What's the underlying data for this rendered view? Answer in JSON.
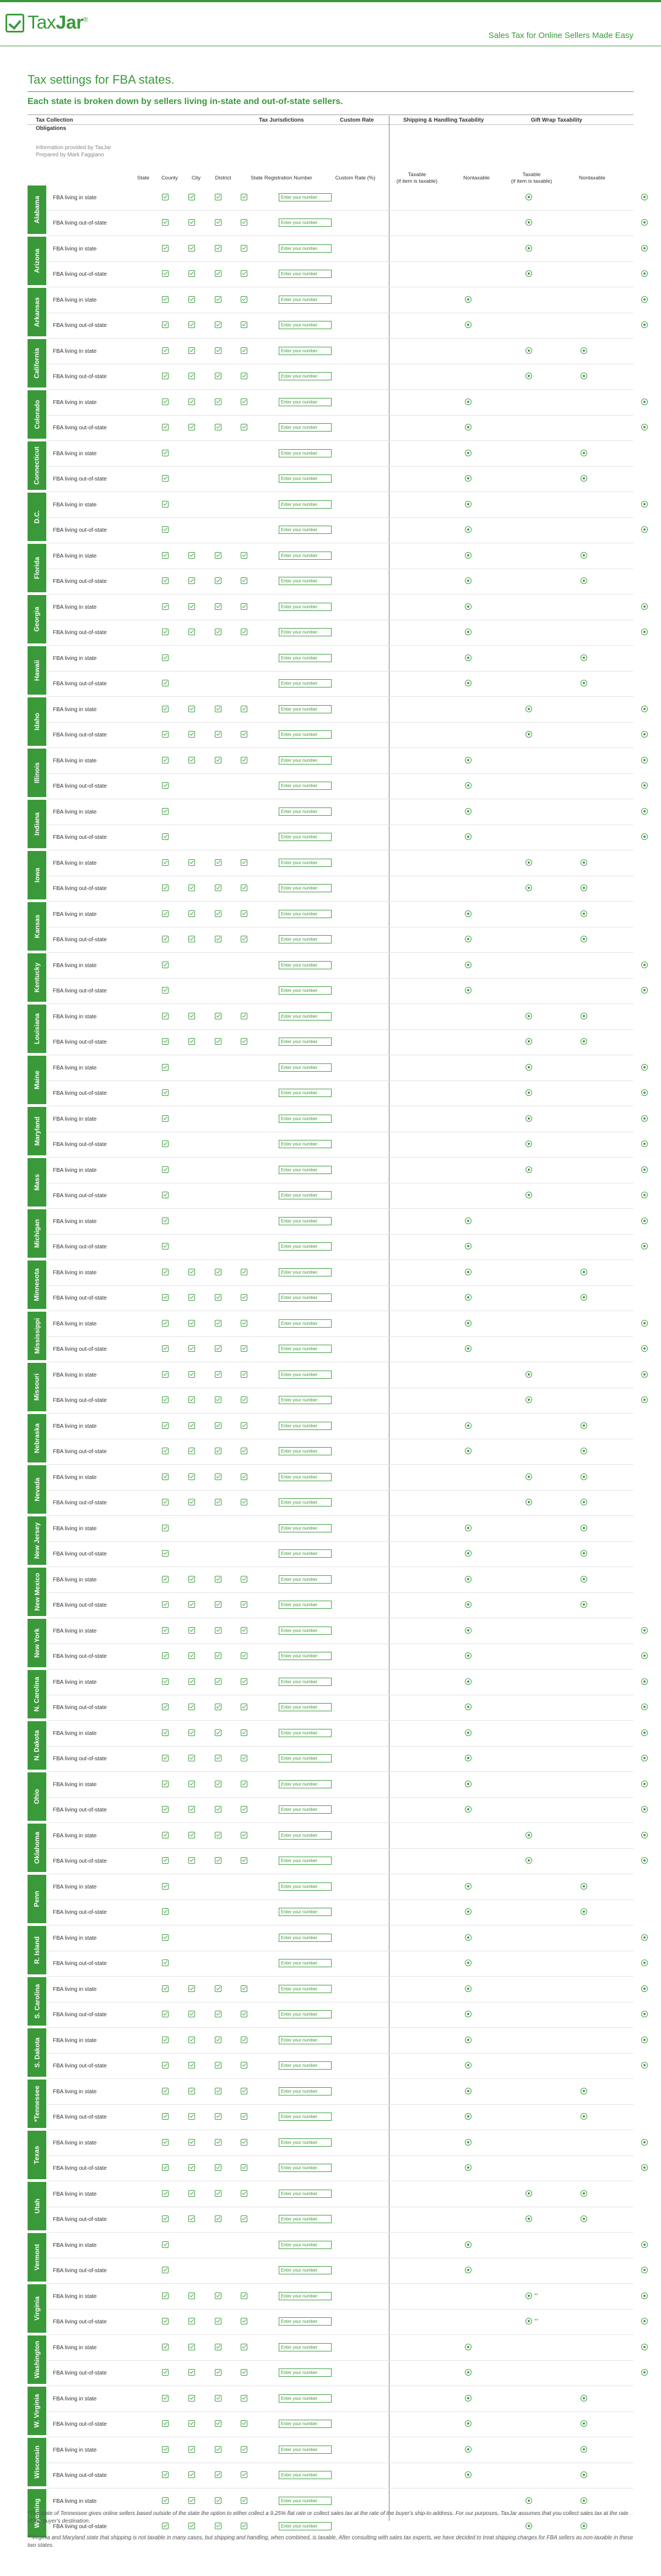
{
  "brand": {
    "logo_text_light": "Tax",
    "logo_text_bold": "Jar",
    "trademark": "®",
    "tagline": "Sales Tax for Online Sellers Made Easy"
  },
  "page": {
    "title": "Tax settings for FBA states.",
    "subtitle": "Each state is broken down by sellers living in-state and out-of-state sellers."
  },
  "headers": {
    "tax_collection": "Tax Collection",
    "obligations": "Obligations",
    "tax_jurisdictions": "Tax Jurisdictions",
    "custom_rate": "Custom Rate",
    "shipping_handling": "Shipping & Handling Taxability",
    "gift_wrap": "Gift Wrap Taxability"
  },
  "info": {
    "line1": "Information provided by TaxJar",
    "line2": "Prepared by Mark Faggiano"
  },
  "subheaders": {
    "state": "State",
    "county": "County",
    "city": "City",
    "district": "District",
    "registration": "State Registration Number",
    "custom": "Custom Rate (%)",
    "taxable": "Taxable",
    "taxable_note": "(if item is taxable)",
    "nontaxable": "Nontaxable",
    "gift_taxable": "Taxable",
    "gift_taxable_note": "(if item is taxable)",
    "gift_nontaxable": "Nontaxable"
  },
  "row_labels": {
    "in": "FBA living in state",
    "out": "FBA living out-of-state"
  },
  "placeholder": "Enter your number",
  "states": [
    {
      "name": "Alabama",
      "rows": [
        {
          "j": [
            1,
            1,
            1,
            1
          ],
          "s": "n",
          "g": "n"
        },
        {
          "j": [
            1,
            1,
            1,
            1
          ],
          "s": "n",
          "g": "n"
        }
      ]
    },
    {
      "name": "Arizona",
      "rows": [
        {
          "j": [
            1,
            1,
            1,
            1
          ],
          "s": "n",
          "g": "n"
        },
        {
          "j": [
            1,
            1,
            1,
            1
          ],
          "s": "n",
          "g": "n"
        }
      ]
    },
    {
      "name": "Arkansas",
      "rows": [
        {
          "j": [
            1,
            1,
            1,
            1
          ],
          "s": "t",
          "g": "n"
        },
        {
          "j": [
            1,
            1,
            1,
            1
          ],
          "s": "t",
          "g": "n"
        }
      ]
    },
    {
      "name": "California",
      "rows": [
        {
          "j": [
            1,
            1,
            1,
            1
          ],
          "s": "n",
          "g": "t"
        },
        {
          "j": [
            1,
            1,
            1,
            1
          ],
          "s": "n",
          "g": "t"
        }
      ]
    },
    {
      "name": "Colorado",
      "rows": [
        {
          "j": [
            1,
            1,
            1,
            1
          ],
          "s": "t",
          "g": "n"
        },
        {
          "j": [
            1,
            1,
            1,
            1
          ],
          "s": "t",
          "g": "n"
        }
      ]
    },
    {
      "name": "Connecticut",
      "rows": [
        {
          "j": [
            1,
            0,
            0,
            0
          ],
          "s": "t",
          "g": "t"
        },
        {
          "j": [
            1,
            0,
            0,
            0
          ],
          "s": "t",
          "g": "t"
        }
      ]
    },
    {
      "name": "D.C.",
      "rows": [
        {
          "j": [
            1,
            0,
            0,
            0
          ],
          "s": "t",
          "g": "n"
        },
        {
          "j": [
            1,
            0,
            0,
            0
          ],
          "s": "t",
          "g": "n"
        }
      ]
    },
    {
      "name": "Florida",
      "rows": [
        {
          "j": [
            1,
            1,
            1,
            1
          ],
          "s": "t",
          "g": "t"
        },
        {
          "j": [
            1,
            1,
            1,
            1
          ],
          "s": "t",
          "g": "t"
        }
      ]
    },
    {
      "name": "Georgia",
      "rows": [
        {
          "j": [
            1,
            1,
            1,
            1
          ],
          "s": "t",
          "g": "n"
        },
        {
          "j": [
            1,
            1,
            1,
            1
          ],
          "s": "t",
          "g": "n"
        }
      ]
    },
    {
      "name": "Hawaii",
      "rows": [
        {
          "j": [
            1,
            0,
            0,
            0
          ],
          "s": "t",
          "g": "t"
        },
        {
          "j": [
            1,
            0,
            0,
            0
          ],
          "s": "t",
          "g": "t"
        }
      ]
    },
    {
      "name": "Idaho",
      "rows": [
        {
          "j": [
            1,
            1,
            1,
            1
          ],
          "s": "n",
          "g": "n"
        },
        {
          "j": [
            1,
            1,
            1,
            1
          ],
          "s": "n",
          "g": "n"
        }
      ]
    },
    {
      "name": "Illinois",
      "rows": [
        {
          "j": [
            1,
            1,
            1,
            1
          ],
          "s": "t",
          "g": "n"
        },
        {
          "j": [
            1,
            0,
            0,
            0
          ],
          "s": "t",
          "g": "n"
        }
      ]
    },
    {
      "name": "Indiana",
      "rows": [
        {
          "j": [
            1,
            0,
            0,
            0
          ],
          "s": "t",
          "g": "n"
        },
        {
          "j": [
            1,
            0,
            0,
            0
          ],
          "s": "t",
          "g": "n"
        }
      ]
    },
    {
      "name": "Iowa",
      "rows": [
        {
          "j": [
            1,
            1,
            1,
            1
          ],
          "s": "n",
          "g": "t"
        },
        {
          "j": [
            1,
            1,
            1,
            1
          ],
          "s": "n",
          "g": "t"
        }
      ]
    },
    {
      "name": "Kansas",
      "rows": [
        {
          "j": [
            1,
            1,
            1,
            1
          ],
          "s": "t",
          "g": "t"
        },
        {
          "j": [
            1,
            1,
            1,
            1
          ],
          "s": "t",
          "g": "t"
        }
      ]
    },
    {
      "name": "Kentucky",
      "rows": [
        {
          "j": [
            1,
            0,
            0,
            0
          ],
          "s": "t",
          "g": "n"
        },
        {
          "j": [
            1,
            0,
            0,
            0
          ],
          "s": "t",
          "g": "n"
        }
      ]
    },
    {
      "name": "Louisiana",
      "rows": [
        {
          "j": [
            1,
            1,
            1,
            1
          ],
          "s": "n",
          "g": "t"
        },
        {
          "j": [
            1,
            1,
            1,
            1
          ],
          "s": "n",
          "g": "t"
        }
      ]
    },
    {
      "name": "Maine",
      "rows": [
        {
          "j": [
            1,
            0,
            0,
            0
          ],
          "s": "n",
          "g": "n"
        },
        {
          "j": [
            1,
            0,
            0,
            0
          ],
          "s": "n",
          "g": "n"
        }
      ]
    },
    {
      "name": "Maryland",
      "rows": [
        {
          "j": [
            1,
            0,
            0,
            0
          ],
          "s": "n",
          "g": "n"
        },
        {
          "j": [
            1,
            0,
            0,
            0
          ],
          "s": "n",
          "g": "n"
        }
      ]
    },
    {
      "name": "Mass",
      "rows": [
        {
          "j": [
            1,
            0,
            0,
            0
          ],
          "s": "n",
          "g": "n"
        },
        {
          "j": [
            1,
            0,
            0,
            0
          ],
          "s": "n",
          "g": "n"
        }
      ]
    },
    {
      "name": "Michigan",
      "rows": [
        {
          "j": [
            1,
            0,
            0,
            0
          ],
          "s": "t",
          "g": "n"
        },
        {
          "j": [
            1,
            0,
            0,
            0
          ],
          "s": "t",
          "g": "n"
        }
      ]
    },
    {
      "name": "Minnesota",
      "rows": [
        {
          "j": [
            1,
            1,
            1,
            1
          ],
          "s": "t",
          "g": "t"
        },
        {
          "j": [
            1,
            1,
            1,
            1
          ],
          "s": "t",
          "g": "t"
        }
      ]
    },
    {
      "name": "Mississippi",
      "rows": [
        {
          "j": [
            1,
            1,
            1,
            1
          ],
          "s": "t",
          "g": "n"
        },
        {
          "j": [
            1,
            1,
            1,
            1
          ],
          "s": "t",
          "g": "n"
        }
      ]
    },
    {
      "name": "Missouri",
      "rows": [
        {
          "j": [
            1,
            1,
            1,
            1
          ],
          "s": "n",
          "g": "n"
        },
        {
          "j": [
            1,
            1,
            1,
            1
          ],
          "s": "n",
          "g": "n"
        }
      ]
    },
    {
      "name": "Nebraska",
      "rows": [
        {
          "j": [
            1,
            1,
            1,
            1
          ],
          "s": "t",
          "g": "t"
        },
        {
          "j": [
            1,
            1,
            1,
            1
          ],
          "s": "t",
          "g": "t"
        }
      ]
    },
    {
      "name": "Nevada",
      "rows": [
        {
          "j": [
            1,
            1,
            1,
            1
          ],
          "s": "n",
          "g": "t"
        },
        {
          "j": [
            1,
            1,
            1,
            1
          ],
          "s": "n",
          "g": "t"
        }
      ]
    },
    {
      "name": "New Jersey",
      "rows": [
        {
          "j": [
            1,
            0,
            0,
            0
          ],
          "s": "t",
          "g": "t"
        },
        {
          "j": [
            1,
            0,
            0,
            0
          ],
          "s": "t",
          "g": "t"
        }
      ]
    },
    {
      "name": "New Mexico",
      "rows": [
        {
          "j": [
            1,
            1,
            1,
            1
          ],
          "s": "t",
          "g": "t"
        },
        {
          "j": [
            1,
            1,
            1,
            1
          ],
          "s": "t",
          "g": "t"
        }
      ]
    },
    {
      "name": "New York",
      "rows": [
        {
          "j": [
            1,
            1,
            1,
            1
          ],
          "s": "t",
          "g": "n"
        },
        {
          "j": [
            1,
            1,
            1,
            1
          ],
          "s": "t",
          "g": "n"
        }
      ]
    },
    {
      "name": "N. Carolina",
      "rows": [
        {
          "j": [
            1,
            1,
            1,
            1
          ],
          "s": "t",
          "g": "n"
        },
        {
          "j": [
            1,
            1,
            1,
            1
          ],
          "s": "t",
          "g": "n"
        }
      ]
    },
    {
      "name": "N. Dakota",
      "rows": [
        {
          "j": [
            1,
            1,
            1,
            1
          ],
          "s": "t",
          "g": "n"
        },
        {
          "j": [
            1,
            1,
            1,
            1
          ],
          "s": "t",
          "g": "n"
        }
      ]
    },
    {
      "name": "Ohio",
      "rows": [
        {
          "j": [
            1,
            1,
            1,
            1
          ],
          "s": "t",
          "g": "n"
        },
        {
          "j": [
            1,
            1,
            1,
            1
          ],
          "s": "t",
          "g": "n"
        }
      ]
    },
    {
      "name": "Oklahoma",
      "rows": [
        {
          "j": [
            1,
            1,
            1,
            1
          ],
          "s": "n",
          "g": "n"
        },
        {
          "j": [
            1,
            1,
            1,
            1
          ],
          "s": "n",
          "g": "n"
        }
      ]
    },
    {
      "name": "Penn",
      "rows": [
        {
          "j": [
            1,
            0,
            0,
            0
          ],
          "s": "t",
          "g": "t"
        },
        {
          "j": [
            1,
            0,
            0,
            0
          ],
          "s": "t",
          "g": "t"
        }
      ]
    },
    {
      "name": "R. Island",
      "rows": [
        {
          "j": [
            1,
            0,
            0,
            0
          ],
          "s": "t",
          "g": "n"
        },
        {
          "j": [
            1,
            0,
            0,
            0
          ],
          "s": "t",
          "g": "n"
        }
      ]
    },
    {
      "name": "S. Carolina",
      "rows": [
        {
          "j": [
            1,
            1,
            1,
            1
          ],
          "s": "t",
          "g": "n"
        },
        {
          "j": [
            1,
            1,
            1,
            1
          ],
          "s": "t",
          "g": "n"
        }
      ]
    },
    {
      "name": "S. Dakota",
      "rows": [
        {
          "j": [
            1,
            1,
            1,
            1
          ],
          "s": "t",
          "g": "n"
        },
        {
          "j": [
            1,
            1,
            1,
            1
          ],
          "s": "t",
          "g": "n"
        }
      ]
    },
    {
      "name": "*Tennessee",
      "rows": [
        {
          "j": [
            1,
            1,
            1,
            1
          ],
          "s": "t",
          "g": "t"
        },
        {
          "j": [
            1,
            1,
            1,
            1
          ],
          "s": "t",
          "g": "t"
        }
      ]
    },
    {
      "name": "Texas",
      "rows": [
        {
          "j": [
            1,
            1,
            1,
            1
          ],
          "s": "t",
          "g": "n"
        },
        {
          "j": [
            1,
            1,
            1,
            1
          ],
          "s": "t",
          "g": "n"
        }
      ]
    },
    {
      "name": "Utah",
      "rows": [
        {
          "j": [
            1,
            1,
            1,
            1
          ],
          "s": "n",
          "g": "t"
        },
        {
          "j": [
            1,
            1,
            1,
            1
          ],
          "s": "n",
          "g": "t"
        }
      ]
    },
    {
      "name": "Vermont",
      "rows": [
        {
          "j": [
            1,
            0,
            0,
            0
          ],
          "s": "t",
          "g": "n"
        },
        {
          "j": [
            1,
            0,
            0,
            0
          ],
          "s": "t",
          "g": "n"
        }
      ]
    },
    {
      "name": "Virginia",
      "rows": [
        {
          "j": [
            1,
            1,
            1,
            1
          ],
          "s": "n*",
          "g": "n"
        },
        {
          "j": [
            1,
            1,
            1,
            1
          ],
          "s": "n*",
          "g": "n"
        }
      ]
    },
    {
      "name": "Washington",
      "rows": [
        {
          "j": [
            1,
            1,
            1,
            1
          ],
          "s": "t",
          "g": "n"
        },
        {
          "j": [
            1,
            1,
            1,
            1
          ],
          "s": "t",
          "g": "n"
        }
      ]
    },
    {
      "name": "W. Virginia",
      "rows": [
        {
          "j": [
            1,
            1,
            1,
            1
          ],
          "s": "t",
          "g": "t"
        },
        {
          "j": [
            1,
            1,
            1,
            1
          ],
          "s": "t",
          "g": "t"
        }
      ]
    },
    {
      "name": "Wisconsin",
      "rows": [
        {
          "j": [
            1,
            1,
            1,
            1
          ],
          "s": "t",
          "g": "t"
        },
        {
          "j": [
            1,
            1,
            1,
            1
          ],
          "s": "t",
          "g": "t"
        }
      ]
    },
    {
      "name": "Wyoming",
      "rows": [
        {
          "j": [
            1,
            1,
            1,
            1
          ],
          "s": "n",
          "g": "t"
        },
        {
          "j": [
            1,
            1,
            1,
            1
          ],
          "s": "n",
          "g": "t"
        }
      ]
    }
  ],
  "radio_note": "**",
  "footnotes": {
    "f1": "*The state of Tennessee gives online sellers based outside of the state the option to either collect a 9.25% flat rate or collect sales tax at the rate of the buyer's ship-to address. For our purposes, TaxJar assumes that you collect sales tax at the rate of the buyer's destination.",
    "f2": "**Virginia and Maryland state that shipping is not taxable in many cases, but shipping and handling, when combined, is taxable. After consulting with sales tax experts, we have decided to treat shipping charges for FBA sellers as non-taxable in these two states."
  },
  "colors": {
    "brand_green": "#3a9a3a"
  }
}
